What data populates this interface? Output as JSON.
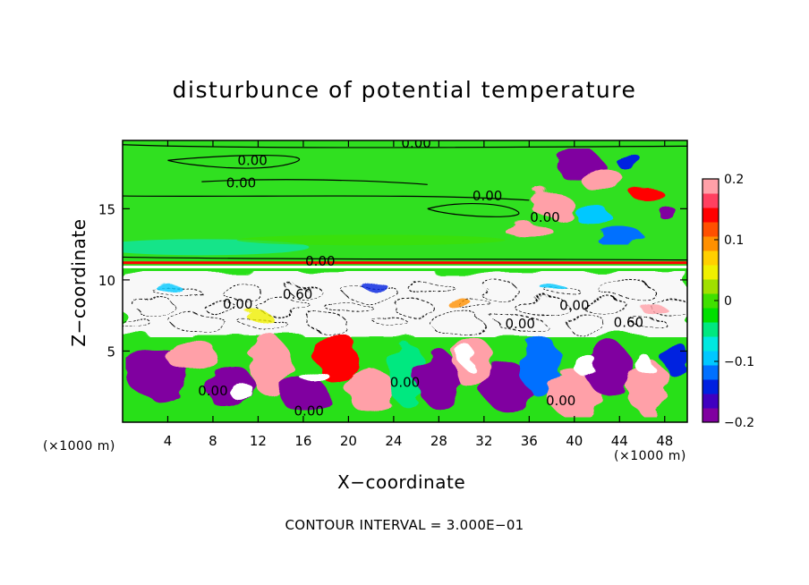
{
  "chart_data": {
    "type": "heatmap",
    "title": "disturbunce of potential temperature",
    "xlabel": "X−coordinate",
    "ylabel": "Z−coordinate",
    "x_unit_label": "(×1000 m)",
    "x_ticks": [
      "4",
      "8",
      "12",
      "16",
      "20",
      "24",
      "28",
      "32",
      "36",
      "40",
      "44",
      "48"
    ],
    "x_tick_values": [
      4,
      8,
      12,
      16,
      20,
      24,
      28,
      32,
      36,
      40,
      44,
      48
    ],
    "y_ticks": [
      "5",
      "10",
      "15"
    ],
    "y_tick_values": [
      5,
      10,
      15
    ],
    "xlim": [
      0,
      50
    ],
    "ylim": [
      0,
      19.8
    ],
    "colorbar": {
      "min": -0.2,
      "max": 0.2,
      "tick_labels": [
        "0.2",
        "0.1",
        "0",
        "−0.1",
        "−0.2"
      ],
      "tick_values": [
        0.2,
        0.1,
        0,
        -0.1,
        -0.2
      ],
      "colors": [
        "#8000a0",
        "#4000c0",
        "#0020e0",
        "#0070ff",
        "#00c8ff",
        "#00e8e0",
        "#00e880",
        "#00e000",
        "#40e000",
        "#a0e000",
        "#f0f000",
        "#ffd000",
        "#ff9000",
        "#ff5000",
        "#ff0000",
        "#ff4060",
        "#ffa0a8"
      ]
    },
    "contour_labels": [
      {
        "text": "0.00",
        "x": 26.0,
        "y": 19.6
      },
      {
        "text": "0.00",
        "x": 11.5,
        "y": 18.4
      },
      {
        "text": "0.00",
        "x": 10.5,
        "y": 16.8
      },
      {
        "text": "0.00",
        "x": 32.3,
        "y": 15.9
      },
      {
        "text": "0.00",
        "x": 37.4,
        "y": 14.4
      },
      {
        "text": "0.00",
        "x": 17.5,
        "y": 11.3
      },
      {
        "text": "0.60",
        "x": 15.5,
        "y": 9.0
      },
      {
        "text": "0.00",
        "x": 10.2,
        "y": 8.3
      },
      {
        "text": "0.00",
        "x": 40.0,
        "y": 8.2
      },
      {
        "text": "0.00",
        "x": 35.2,
        "y": 6.9
      },
      {
        "text": "0.60",
        "x": 44.8,
        "y": 7.0
      },
      {
        "text": "0.00",
        "x": 8.0,
        "y": 2.2
      },
      {
        "text": "0.00",
        "x": 25.0,
        "y": 2.8
      },
      {
        "text": "0.00",
        "x": 16.5,
        "y": 0.8
      },
      {
        "text": "0.00",
        "x": 38.8,
        "y": 1.5
      }
    ],
    "contour_interval_text": "CONTOUR INTERVAL = 3.000E−01"
  }
}
